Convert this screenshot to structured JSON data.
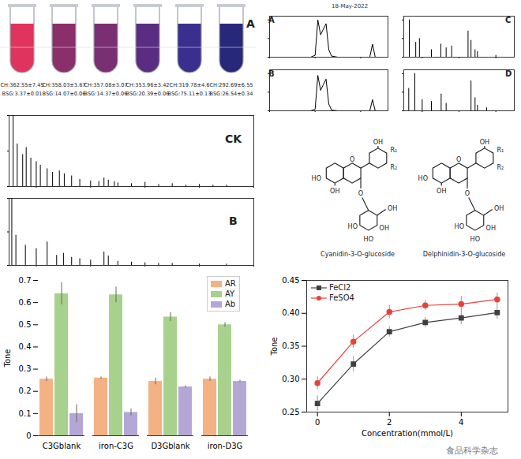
{
  "chart_data": [
    {
      "type": "bar",
      "title": "CK",
      "x": [
        115,
        130,
        150,
        163,
        180,
        200,
        215,
        240,
        260,
        285,
        303,
        330,
        360,
        400,
        430,
        449,
        465,
        487,
        500,
        550,
        600,
        650,
        700,
        750,
        800,
        850,
        900
      ],
      "values": [
        100,
        60,
        45,
        55,
        40,
        35,
        30,
        25,
        20,
        22,
        18,
        15,
        10,
        8,
        7,
        12,
        9,
        7,
        5,
        4,
        6,
        3,
        4,
        2,
        3,
        2,
        2
      ],
      "xlim": [
        100,
        1000
      ],
      "ylim": [
        0,
        100
      ],
      "xticks": [
        200,
        400,
        600,
        800,
        1000
      ],
      "yticks": [
        0,
        50,
        100
      ],
      "tick_labels": false,
      "color": "#000000"
    },
    {
      "type": "bar",
      "title": "B",
      "x": [
        110,
        125,
        160,
        200,
        240,
        275,
        300,
        330,
        360,
        400,
        449,
        465,
        500,
        550,
        600,
        650,
        700,
        800,
        900
      ],
      "values": [
        100,
        45,
        30,
        25,
        35,
        15,
        18,
        12,
        10,
        8,
        20,
        14,
        6,
        5,
        4,
        3,
        3,
        2,
        2
      ],
      "xlim": [
        100,
        1000
      ],
      "ylim": [
        0,
        100
      ],
      "xticks": [
        200,
        400,
        600,
        800,
        1000
      ],
      "yticks": [
        0,
        50,
        100
      ],
      "tick_labels": false,
      "color": "#000000"
    },
    {
      "type": "line",
      "title": "A",
      "subtitle": "18-May-2022",
      "x": [
        0,
        4.5,
        5.0,
        5.3,
        5.6,
        5.9,
        6.2,
        6.5,
        6.8,
        7.5,
        11.0,
        11.3,
        11.6,
        12,
        13
      ],
      "values": [
        0,
        0,
        5,
        100,
        60,
        75,
        90,
        20,
        3,
        0,
        0,
        35,
        0,
        0,
        0
      ],
      "xlim": [
        0,
        13
      ],
      "ylim": [
        0,
        110
      ],
      "xticks": [
        0,
        5,
        10
      ],
      "yticks": [
        0,
        50,
        100
      ],
      "tick_labels": false,
      "color": "#000000"
    },
    {
      "type": "line",
      "title": "B",
      "x": [
        0,
        4.5,
        5.0,
        5.3,
        5.6,
        5.9,
        6.2,
        6.5,
        6.8,
        7.5,
        11.0,
        11.3,
        11.6,
        12,
        13
      ],
      "values": [
        0,
        0,
        4,
        95,
        55,
        70,
        85,
        18,
        2,
        0,
        0,
        30,
        0,
        0,
        0
      ],
      "xlim": [
        0,
        13
      ],
      "ylim": [
        0,
        110
      ],
      "xticks": [
        0,
        5,
        10
      ],
      "yticks": [
        0,
        50,
        100
      ],
      "tick_labels": false,
      "color": "#000000"
    },
    {
      "type": "bar",
      "title": "C",
      "x": [
        130,
        165,
        185,
        250,
        301,
        330,
        360,
        449,
        465,
        487,
        500,
        600
      ],
      "values": [
        100,
        40,
        50,
        20,
        35,
        25,
        30,
        70,
        45,
        20,
        15,
        5
      ],
      "xlim": [
        100,
        700
      ],
      "ylim": [
        0,
        110
      ],
      "xticks": [
        200,
        400,
        600
      ],
      "yticks": [
        0,
        50,
        100
      ],
      "tick_labels": false,
      "color": "#000000"
    },
    {
      "type": "bar",
      "title": "D",
      "x": [
        127,
        160,
        200,
        250,
        303,
        330,
        465,
        487,
        500,
        550
      ],
      "values": [
        60,
        100,
        30,
        25,
        45,
        20,
        80,
        35,
        15,
        8
      ],
      "xlim": [
        100,
        700
      ],
      "ylim": [
        0,
        110
      ],
      "xticks": [
        200,
        400,
        600
      ],
      "yticks": [
        0,
        50,
        100
      ],
      "tick_labels": false,
      "color": "#000000"
    },
    {
      "type": "bar",
      "y_label": "Tone",
      "categories": [
        "C3Gblank",
        "iron-C3G",
        "D3Gblank",
        "iron-D3G"
      ],
      "series": [
        {
          "name": "AR",
          "color": "#f4b183",
          "values": [
            0.255,
            0.26,
            0.245,
            0.255
          ],
          "errors": [
            0.01,
            0.005,
            0.015,
            0.01
          ]
        },
        {
          "name": "AY",
          "color": "#a9d18e",
          "values": [
            0.64,
            0.635,
            0.535,
            0.5
          ],
          "errors": [
            0.05,
            0.035,
            0.02,
            0.01
          ]
        },
        {
          "name": "Ab",
          "color": "#b4a7d6",
          "values": [
            0.1,
            0.105,
            0.22,
            0.245
          ],
          "errors": [
            0.04,
            0.015,
            0.005,
            0.005
          ]
        }
      ],
      "ylim": [
        0,
        0.7
      ],
      "yticks": [
        0,
        0.1,
        0.2,
        0.3,
        0.4,
        0.5,
        0.6,
        0.7
      ],
      "legend": "top-right"
    },
    {
      "type": "line",
      "x_label": "Concentration(mmol/L)",
      "y_label": "Tone",
      "x": [
        0,
        1,
        2,
        3,
        4,
        5
      ],
      "series": [
        {
          "name": "FeCl2",
          "color": "#404040",
          "marker": "square",
          "values": [
            0.263,
            0.323,
            0.372,
            0.386,
            0.393,
            0.401
          ],
          "errors": [
            0.012,
            0.012,
            0.008,
            0.008,
            0.01,
            0.01
          ]
        },
        {
          "name": "FeSO4",
          "color": "#e8413c",
          "marker": "circle",
          "values": [
            0.294,
            0.357,
            0.402,
            0.412,
            0.414,
            0.421
          ],
          "errors": [
            0.01,
            0.01,
            0.01,
            0.008,
            0.012,
            0.01
          ]
        }
      ],
      "xlim": [
        -0.3,
        5.3
      ],
      "ylim": [
        0.25,
        0.45
      ],
      "xticks": [
        0,
        2,
        4
      ],
      "yticks": [
        {
          "value": 0.25,
          "label": "0.25"
        },
        {
          "value": 0.3,
          "label": "0.30"
        },
        {
          "value": 0.35,
          "label": "0.35"
        },
        {
          "value": 0.4,
          "label": "0.40"
        },
        {
          "value": 0.45,
          "label": "0.45"
        }
      ],
      "legend": "top-left"
    }
  ],
  "tubes": {
    "label": "A",
    "items": [
      {
        "color": "#e0345f",
        "caption": [
          "CH:362.55±7.45",
          "BSG:3.37±0.01"
        ]
      },
      {
        "color": "#8a2f6a",
        "caption": [
          "CH:358.03±3.67",
          "BSG:14.07±0.06"
        ]
      },
      {
        "color": "#7a2f72",
        "caption": [
          "CH:357.08±3.07",
          "BSG:14.37±0.06"
        ]
      },
      {
        "color": "#5a2d82",
        "caption": [
          "CH:353.96±3.42",
          "BSG:20.39±0.06"
        ]
      },
      {
        "color": "#3a2f8f",
        "caption": [
          "CH:319.78±4.6",
          "BSG:75.11±0.13"
        ]
      },
      {
        "color": "#28287a",
        "caption": [
          "CH:292.69±6.55",
          "BSG:26.54±0.34"
        ]
      }
    ]
  },
  "structures": [
    {
      "name": "Cyanidin-3-O-glucoside",
      "labels": [
        "HO",
        "OH",
        "O",
        "OH",
        "R₁",
        "R₂",
        "O",
        "HO",
        "HO",
        "OH",
        "OH"
      ]
    },
    {
      "name": "Delphinidin-3-O-glucoside",
      "labels": [
        "HO",
        "OH",
        "O",
        "OH",
        "R₁",
        "R₂",
        "O",
        "HO",
        "HO",
        "OH",
        "OH"
      ]
    }
  ],
  "watermark": "食品科学杂志"
}
